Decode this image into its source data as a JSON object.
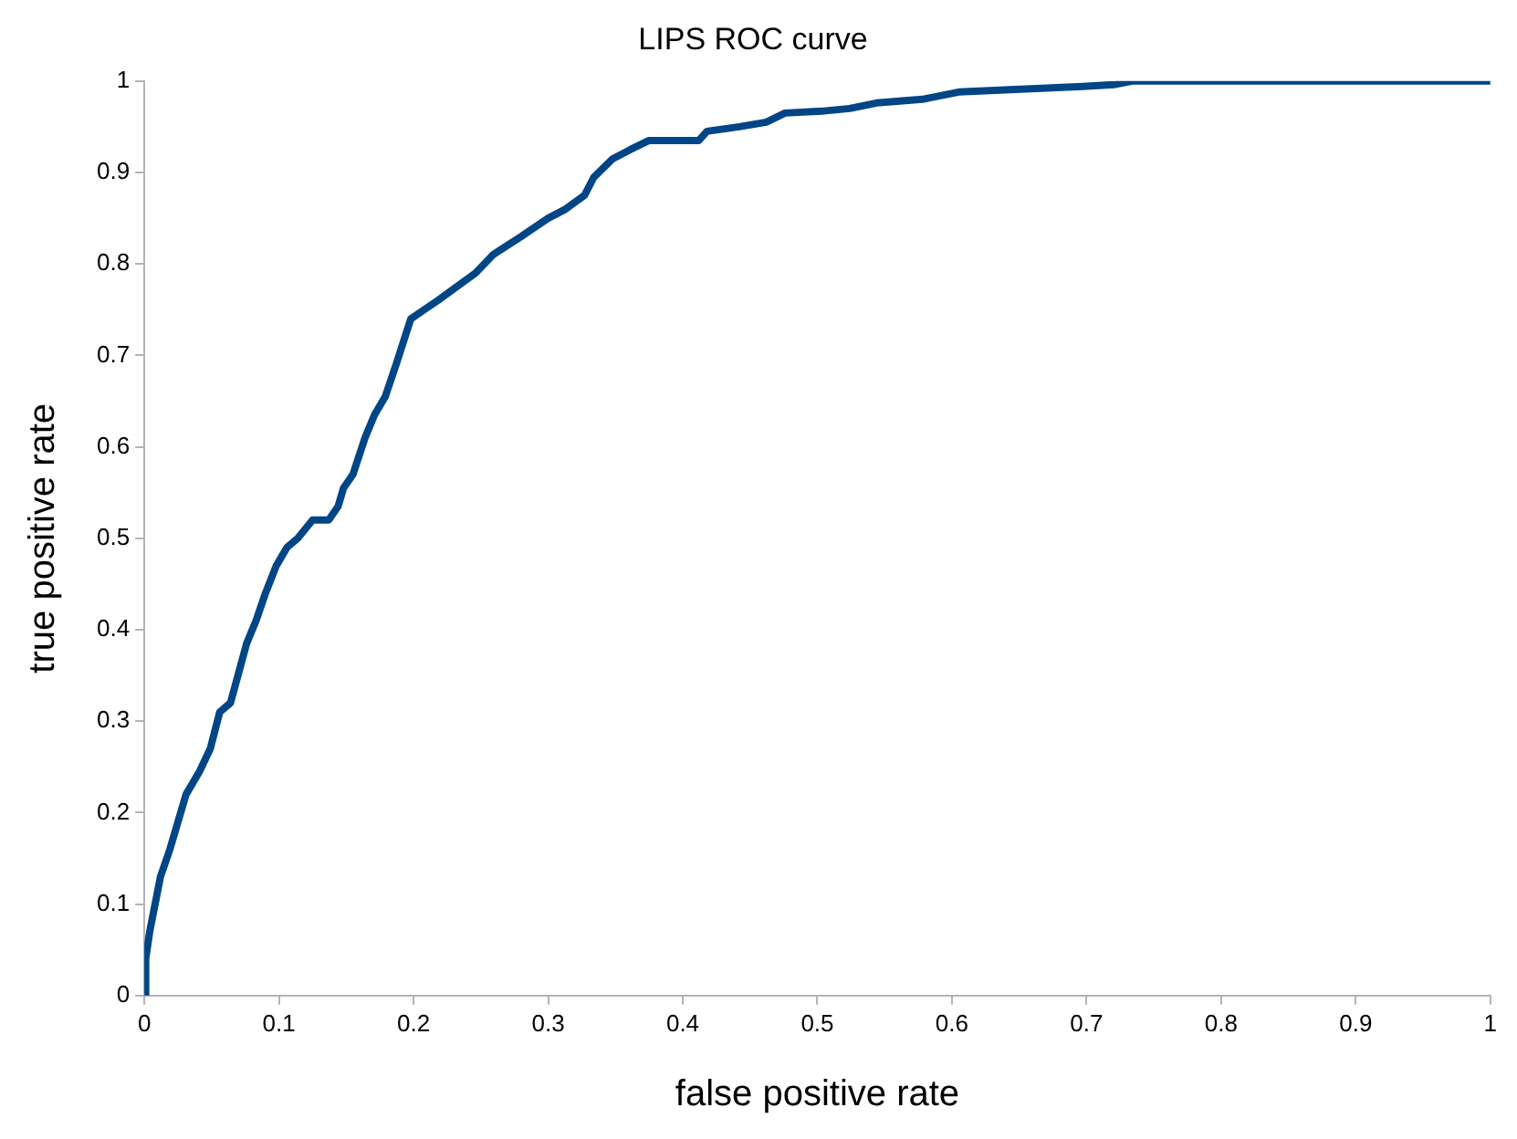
{
  "chart_data": {
    "type": "line",
    "title": "LIPS ROC curve",
    "xlabel": "false positive rate",
    "ylabel": "true positive rate",
    "series": [
      {
        "color": "#004586",
        "x": [
          0,
          0.001,
          0.004,
          0.008,
          0.012,
          0.019,
          0.024,
          0.031,
          0.041,
          0.049,
          0.056,
          0.064,
          0.076,
          0.083,
          0.09,
          0.098,
          0.106,
          0.114,
          0.125,
          0.137,
          0.144,
          0.148,
          0.155,
          0.164,
          0.171,
          0.179,
          0.187,
          0.198,
          0.208,
          0.218,
          0.232,
          0.246,
          0.259,
          0.28,
          0.3,
          0.313,
          0.327,
          0.334,
          0.348,
          0.361,
          0.375,
          0.412,
          0.418,
          0.442,
          0.462,
          0.476,
          0.503,
          0.524,
          0.544,
          0.578,
          0.605,
          0.697,
          0.72,
          0.734,
          1
        ],
        "values": [
          0,
          0.04,
          0.07,
          0.1,
          0.13,
          0.16,
          0.185,
          0.22,
          0.245,
          0.27,
          0.31,
          0.32,
          0.385,
          0.41,
          0.44,
          0.47,
          0.49,
          0.5,
          0.52,
          0.52,
          0.535,
          0.555,
          0.57,
          0.61,
          0.635,
          0.655,
          0.69,
          0.74,
          0.75,
          0.76,
          0.775,
          0.79,
          0.81,
          0.83,
          0.85,
          0.86,
          0.875,
          0.895,
          0.915,
          0.925,
          0.935,
          0.935,
          0.945,
          0.95,
          0.955,
          0.965,
          0.967,
          0.97,
          0.976,
          0.98,
          0.988,
          0.994,
          0.996,
          1,
          1
        ]
      }
    ],
    "xlim": [
      0,
      1
    ],
    "xticks": [
      0,
      0.1,
      0.2,
      0.3,
      0.4,
      0.5,
      0.6,
      0.7,
      0.8,
      0.9,
      1
    ],
    "ylim": [
      0,
      1
    ],
    "yticks": [
      0,
      0.1,
      0.2,
      0.3,
      0.4,
      0.5,
      0.6,
      0.7,
      0.8,
      0.9,
      1
    ],
    "grid": false,
    "legend": false,
    "marker": "none",
    "line_style": "solid"
  }
}
